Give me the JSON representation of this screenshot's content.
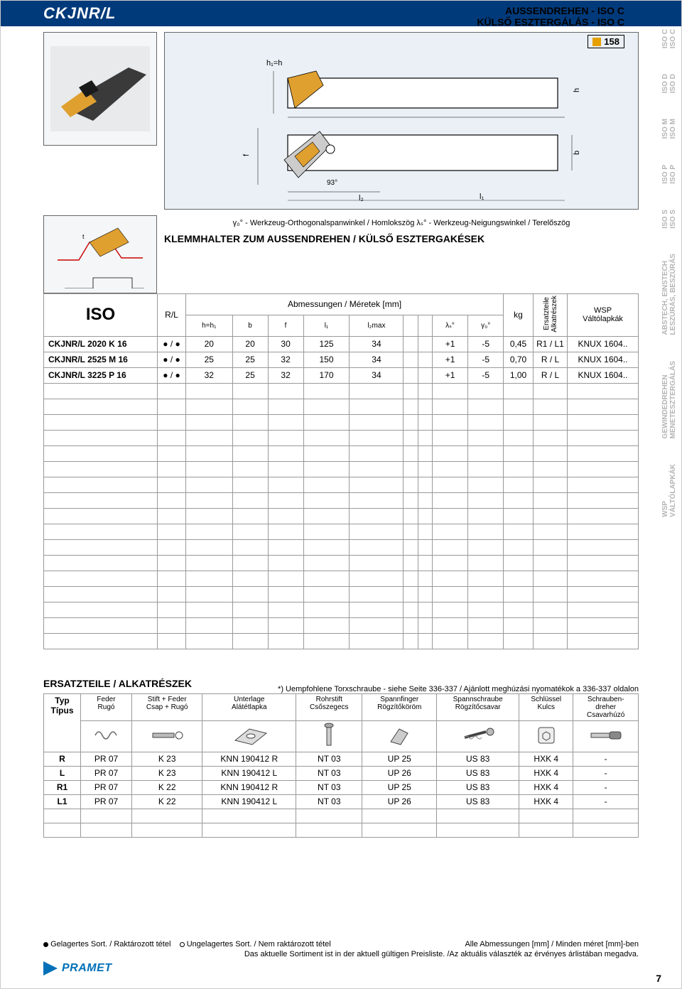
{
  "header": {
    "title": "CKJNR/L",
    "subtitle1": "AUSSENDREHEN - ISO C",
    "subtitle2": "KÜLSŐ ESZTERGÁLÁS - ISO C",
    "pageref": "158"
  },
  "labels": {
    "h1h": "h₁=h",
    "f": "f",
    "l2": "l₂",
    "l1": "l₁",
    "h": "h",
    "b": "b",
    "angle": "93°",
    "gamma_line": "γ₀° - Werkzeug-Orthogonalspanwinkel / Homlokszög    λₛ° - Werkzeug-Neigungswinkel / Terelőszög",
    "klemm": "KLEMMHALTER ZUM AUSSENDREHEN / KÜLSŐ ESZTERGAKÉSEK"
  },
  "table": {
    "iso": "ISO",
    "rl": "R/L",
    "dimheader": "Abmessungen / Méretek [mm]",
    "cols": [
      "h=h₁",
      "b",
      "f",
      "l₁",
      "l₂max",
      "",
      "",
      "λₛ°",
      "γ₀°"
    ],
    "kg": "kg",
    "ersatz_v": "Ersatzteile\nAlkatrészek",
    "wsp": "WSP\nVáltólapkák",
    "rows": [
      {
        "name": "CKJNR/L 2020 K 16",
        "rl": "● / ●",
        "h": "20",
        "b": "20",
        "f": "30",
        "l1": "125",
        "l2": "34",
        "c6": "",
        "c7": "",
        "ls": "+1",
        "go": "-5",
        "kg": "0,45",
        "ersatz": "R1 / L1",
        "wsp": "KNUX 1604.."
      },
      {
        "name": "CKJNR/L 2525 M 16",
        "rl": "● / ●",
        "h": "25",
        "b": "25",
        "f": "32",
        "l1": "150",
        "l2": "34",
        "c6": "",
        "c7": "",
        "ls": "+1",
        "go": "-5",
        "kg": "0,70",
        "ersatz": "R / L",
        "wsp": "KNUX 1604.."
      },
      {
        "name": "CKJNR/L 3225 P 16",
        "rl": "● / ●",
        "h": "32",
        "b": "25",
        "f": "32",
        "l1": "170",
        "l2": "34",
        "c6": "",
        "c7": "",
        "ls": "+1",
        "go": "-5",
        "kg": "1,00",
        "ersatz": "R / L",
        "wsp": "KNUX 1604.."
      }
    ],
    "empty_rows": 17
  },
  "spare": {
    "title": "ERSATZTEILE / ALKATRÉSZEK",
    "note": "*) Uempfohlene Torxschraube - siehe Seite 336-337 / Ajánlott meghúzási nyomatékok a 336-337 oldalon",
    "typ": "Typ\nTípus",
    "headers": [
      {
        "de": "Feder",
        "hu": "Rugó"
      },
      {
        "de": "Stift + Feder",
        "hu": "Csap + Rugó"
      },
      {
        "de": "Unterlage",
        "hu": "Alátétlapka"
      },
      {
        "de": "Rohrstift",
        "hu": "Csőszegecs"
      },
      {
        "de": "Spannfinger",
        "hu": "Rögzítőköröm"
      },
      {
        "de": "Spannschraube",
        "hu": "Rögzítőcsavar"
      },
      {
        "de": "Schlüssel",
        "hu": "Kulcs"
      },
      {
        "de": "Schrauben-\ndreher",
        "hu": "Csavarhúzó"
      }
    ],
    "rows": [
      {
        "t": "R",
        "c": [
          "PR 07",
          "K 23",
          "KNN 190412 R",
          "NT 03",
          "UP 25",
          "US 83",
          "HXK 4",
          "-"
        ]
      },
      {
        "t": "L",
        "c": [
          "PR 07",
          "K 23",
          "KNN 190412 L",
          "NT 03",
          "UP 26",
          "US 83",
          "HXK 4",
          "-"
        ]
      },
      {
        "t": "R1",
        "c": [
          "PR 07",
          "K 22",
          "KNN 190412 R",
          "NT 03",
          "UP 25",
          "US 83",
          "HXK 4",
          "-"
        ]
      },
      {
        "t": "L1",
        "c": [
          "PR 07",
          "K 22",
          "KNN 190412 L",
          "NT 03",
          "UP 26",
          "US 83",
          "HXK 4",
          "-"
        ]
      }
    ],
    "empty_rows": 2
  },
  "footer": {
    "legend1": "● Gelagertes Sort. / Raktározott tétel    ○ Ungelagertes Sort. / Nem raktározott tétel",
    "legend2": "Alle Abmessungen [mm] / Minden méret [mm]-ben",
    "legend3": "Das aktuelle Sortiment ist in der aktuell gültigen Preisliste.  /Az aktuális választék az érvényes árlistában  megadva.",
    "logo": "PRAMET",
    "pagenum": "7"
  },
  "sidetabs": [
    "ISO C\nISO C",
    "ISO D\nISO D",
    "ISO M\nISO M",
    "ISO P\nISO P",
    "ISO S\nISO S",
    "ABSTECH, EINSTECH\nLESZÚRÁS, BESZÚRÁS",
    "GEWINDEDREHEN\nMENETESZTERGÁLÁS",
    "WSP\nVÁLTÓLAPKÁK"
  ],
  "colors": {
    "header_bg": "#003a7a",
    "accent": "#0070b8",
    "page_ref": "#e6a000",
    "line": "#999999",
    "gray": "#b5b5b5"
  }
}
